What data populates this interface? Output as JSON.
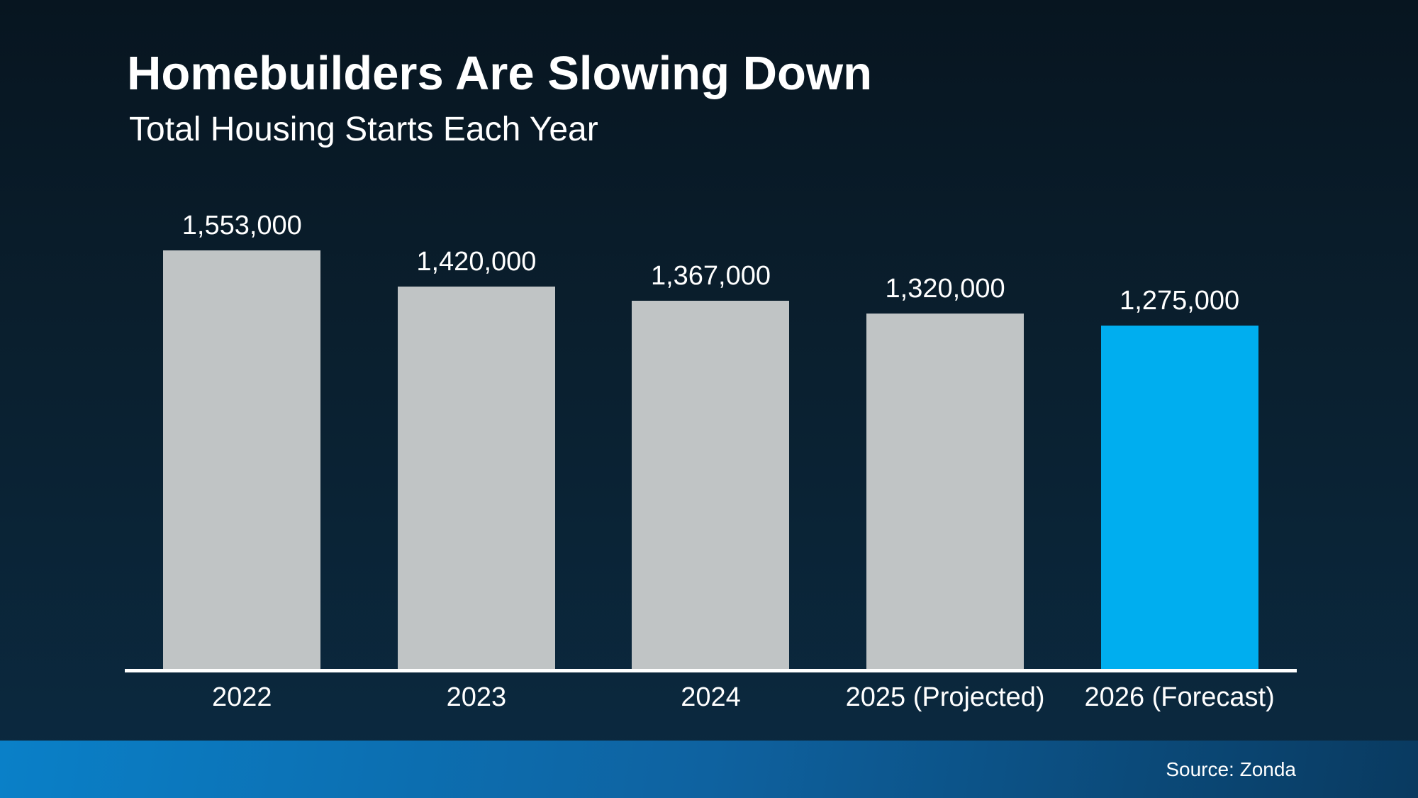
{
  "header": {
    "title": "Homebuilders Are Slowing Down",
    "subtitle": "Total Housing Starts Each Year"
  },
  "footer": {
    "source_label": "Source: Zonda"
  },
  "chart_data": {
    "type": "bar",
    "title": "Homebuilders Are Slowing Down",
    "subtitle": "Total Housing Starts Each Year",
    "categories": [
      "2022",
      "2023",
      "2024",
      "2025 (Projected)",
      "2026 (Forecast)"
    ],
    "values": [
      1553000,
      1420000,
      1367000,
      1320000,
      1275000
    ],
    "value_labels": [
      "1,553,000",
      "1,420,000",
      "1,367,000",
      "1,320,000",
      "1,275,000"
    ],
    "bar_colors": [
      "#c0c4c5",
      "#c0c4c5",
      "#c0c4c5",
      "#c0c4c5",
      "#00aeef"
    ],
    "highlight_index": 4,
    "ylim": [
      0,
      1553000
    ],
    "grid": false,
    "legend": null,
    "xlabel": "",
    "ylabel": "",
    "annotation_source": "Source: Zonda"
  },
  "colors": {
    "background_top": "#071520",
    "background_bottom": "#0b2a41",
    "bar_gray": "#c0c4c5",
    "bar_highlight_blue": "#00aeef",
    "axis_line": "#ffffff",
    "footer_gradient_left": "#0a80c8",
    "footer_gradient_right": "#093a60",
    "text": "#ffffff"
  }
}
